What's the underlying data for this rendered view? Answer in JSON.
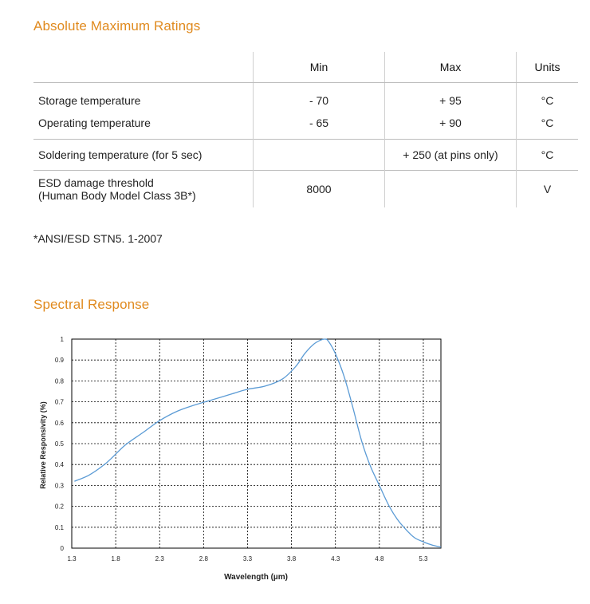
{
  "ratings": {
    "title": "Absolute Maximum Ratings",
    "headers": {
      "parameter": "",
      "min": "Min",
      "max": "Max",
      "units": "Units"
    },
    "rows": [
      {
        "name": "Storage temperature",
        "min": "- 70",
        "max": "+ 95",
        "units": "°C"
      },
      {
        "name": "Operating temperature",
        "min": "- 65",
        "max": "+ 90",
        "units": "°C"
      },
      {
        "name": "Soldering temperature (for 5 sec)",
        "min": "",
        "max": "+ 250 (at pins only)",
        "units": "°C"
      },
      {
        "name": "ESD damage threshold",
        "name_line2": "(Human Body Model Class 3B*)",
        "min": "8000",
        "max": "",
        "units": "V"
      }
    ],
    "footnote": "*ANSI/ESD STN5. 1-2007"
  },
  "spectral": {
    "title": "Spectral Response"
  },
  "chart_data": {
    "type": "line",
    "title": "",
    "xlabel": "Wavelength (µm)",
    "ylabel": "Relative Responsivity (%)",
    "xlim": [
      1.3,
      5.5
    ],
    "ylim": [
      0,
      1
    ],
    "x_ticks": [
      "1.3",
      "1.8",
      "2.3",
      "2.8",
      "3.3",
      "3.8",
      "4.3",
      "4.8",
      "5.3"
    ],
    "y_ticks": [
      "0",
      "0.1",
      "0.2",
      "0.3",
      "0.4",
      "0.5",
      "0.6",
      "0.7",
      "0.8",
      "0.9",
      "1"
    ],
    "grid": true,
    "line_color": "#5b9bd5",
    "series": [
      {
        "x": [
          1.33,
          1.5,
          1.7,
          1.9,
          2.1,
          2.3,
          2.5,
          2.7,
          2.9,
          3.1,
          3.3,
          3.5,
          3.7,
          3.85,
          3.95,
          4.05,
          4.13,
          4.18,
          4.22,
          4.3,
          4.4,
          4.5,
          4.6,
          4.7,
          4.8,
          4.9,
          5.0,
          5.1,
          5.2,
          5.3,
          5.4,
          5.5
        ],
        "y": [
          0.32,
          0.35,
          0.41,
          0.49,
          0.55,
          0.61,
          0.655,
          0.685,
          0.71,
          0.735,
          0.76,
          0.775,
          0.81,
          0.87,
          0.93,
          0.975,
          0.995,
          1.0,
          0.99,
          0.93,
          0.82,
          0.67,
          0.51,
          0.39,
          0.3,
          0.21,
          0.14,
          0.09,
          0.05,
          0.03,
          0.015,
          0.005
        ]
      }
    ]
  }
}
